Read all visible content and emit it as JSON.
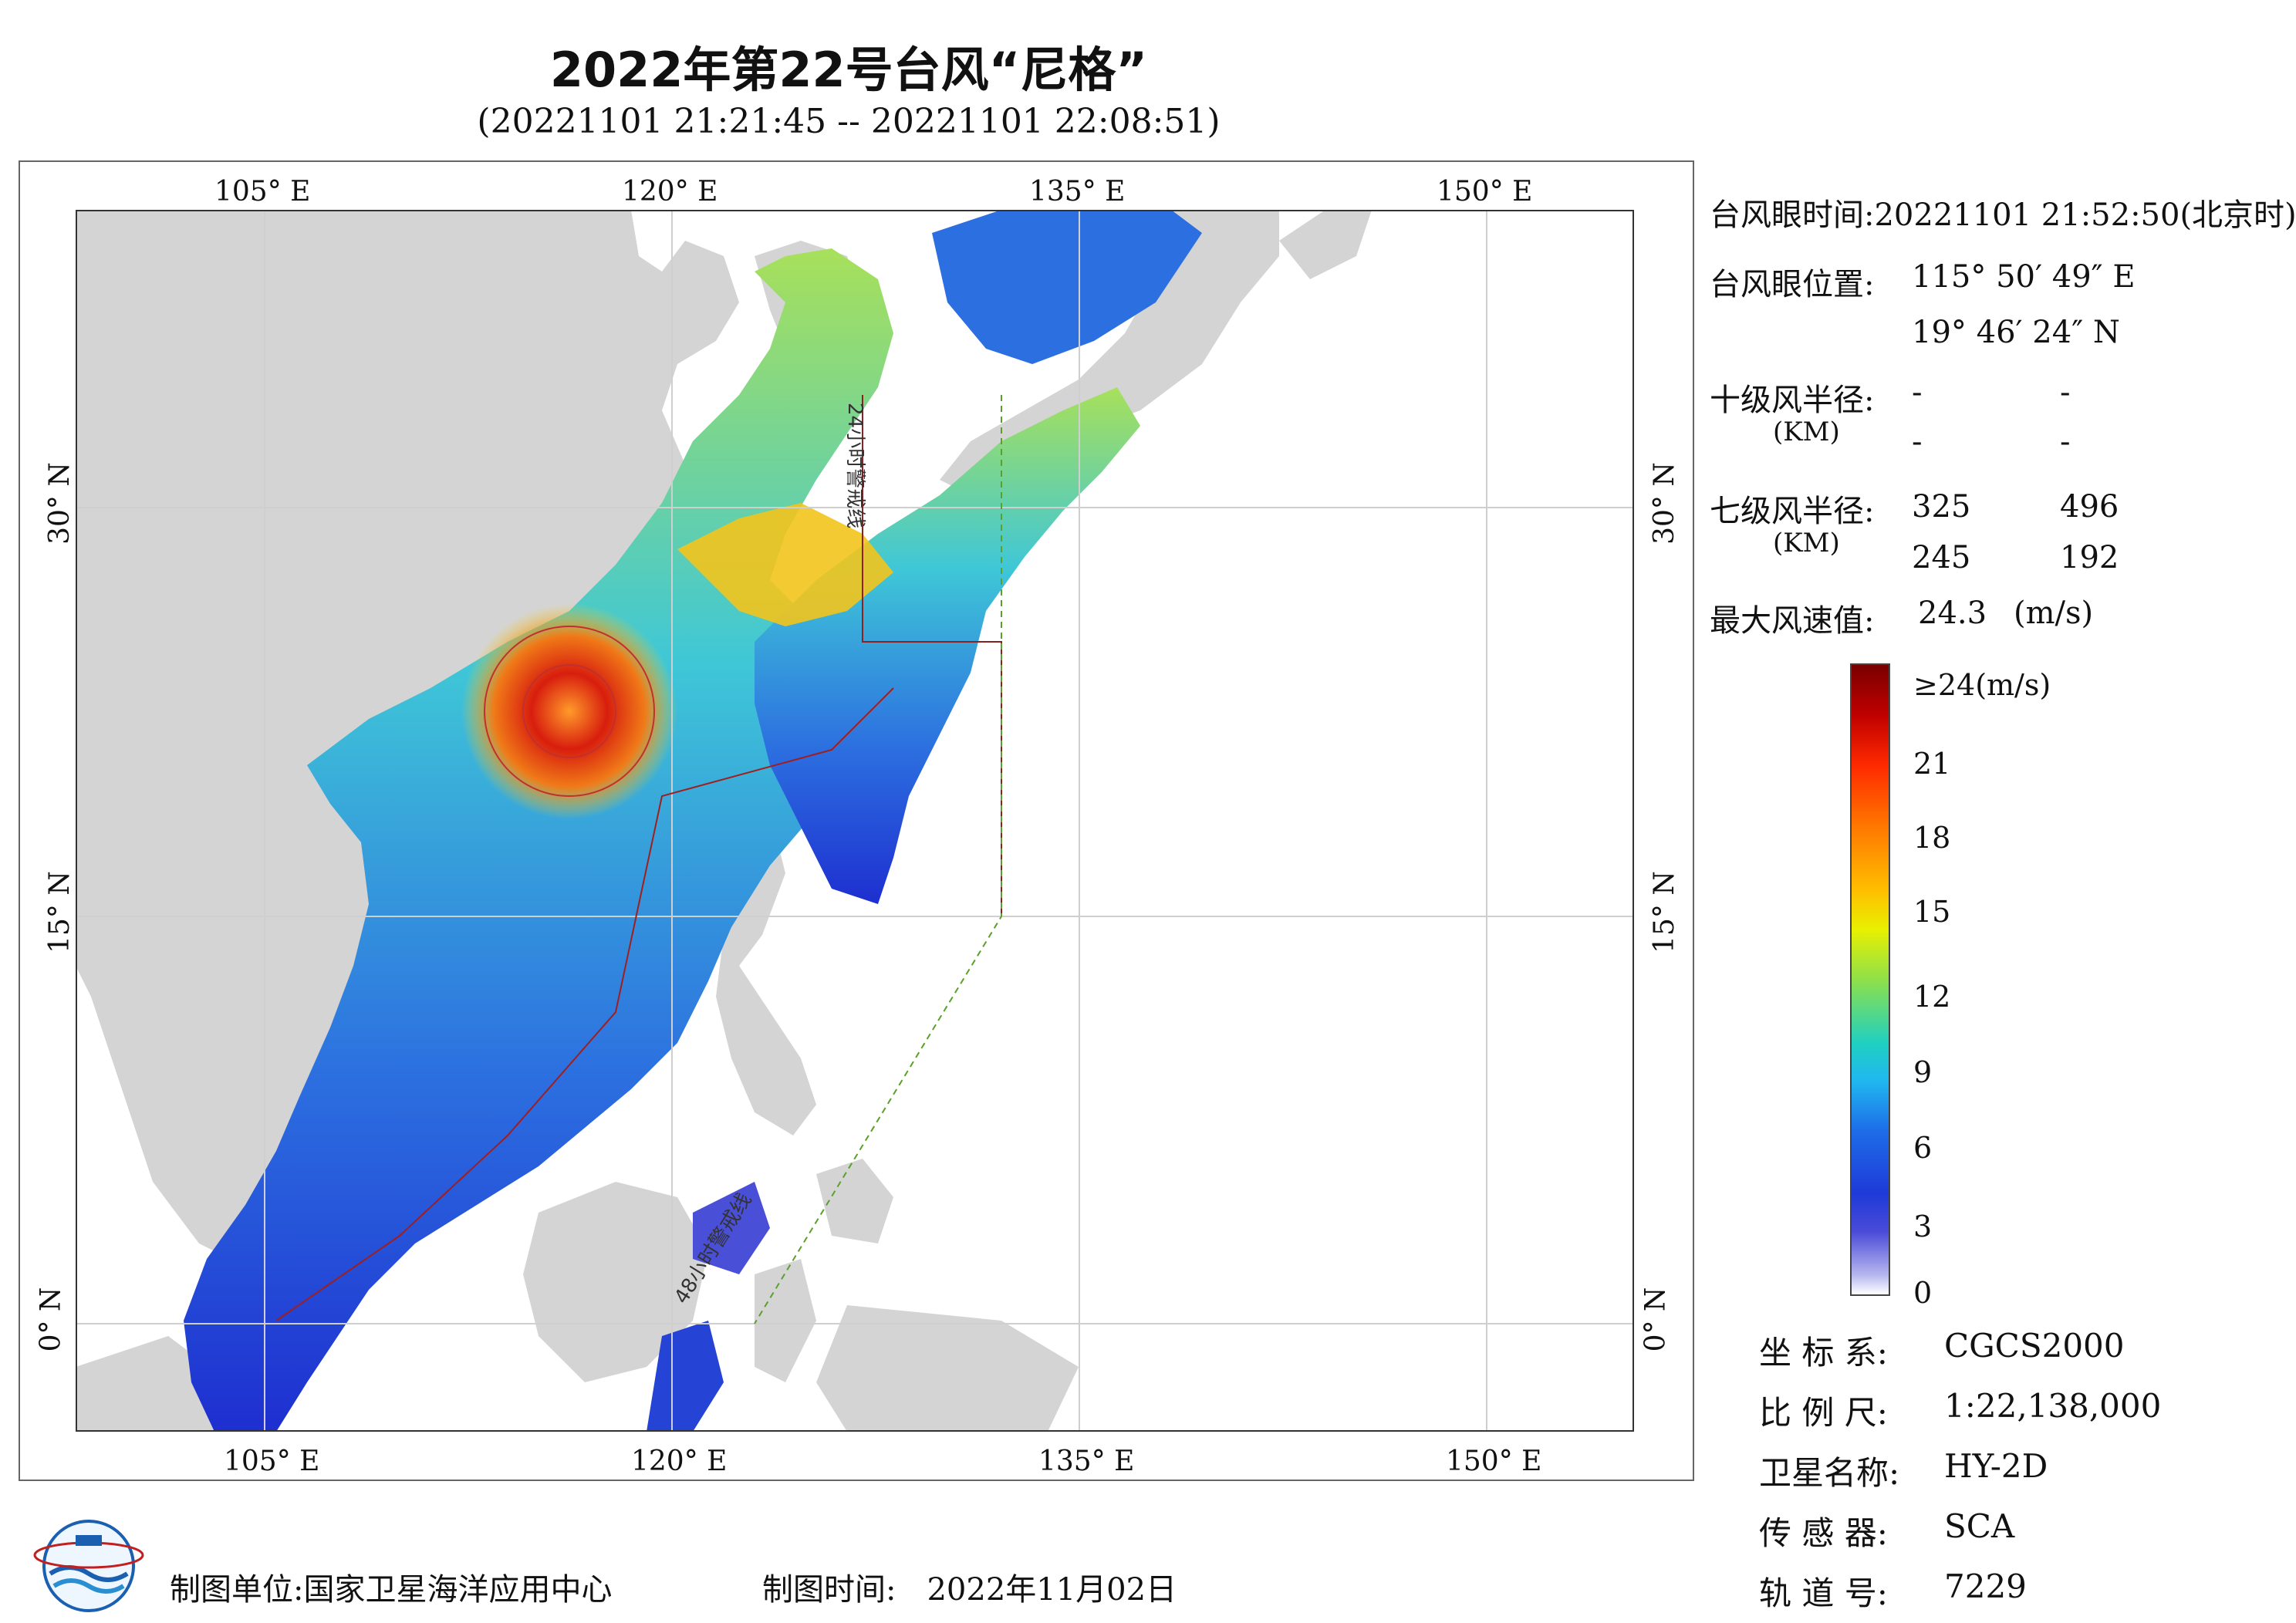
{
  "title": "2022年第22号台风“尼格”",
  "subtitle": "(20221101 21:21:45 -- 20221101 22:08:51)",
  "map": {
    "lon_top_labels": [
      "105° E",
      "120° E",
      "135° E",
      "150° E"
    ],
    "lon_bottom_labels": [
      "105° E",
      "120° E",
      "135° E",
      "150° E"
    ],
    "lat_left_labels": [
      "30° N",
      "15° N",
      "0° N"
    ],
    "lat_right_labels": [
      "30° N",
      "15° N",
      "0° N"
    ],
    "warning_24h_label": "24小时警戒线",
    "warning_48h_label": "48小时警戒线",
    "colors": {
      "land": "#d4d4d4",
      "sea": "#ffffff",
      "wind_high": "#8b0000",
      "wind_low": "#1530d8"
    }
  },
  "info": {
    "eye_time_label": "台风眼时间:",
    "eye_time_value": "20221101 21:52:50(北京时)",
    "eye_pos_label": "台风眼位置:",
    "eye_lon": "115° 50′ 49″ E",
    "eye_lat": "19° 46′ 24″ N",
    "r10_label": "十级风半径:",
    "r10_unit": "(KM)",
    "r10_values": [
      "-",
      "-",
      "-",
      "-"
    ],
    "r7_label": "七级风半径:",
    "r7_unit": "(KM)",
    "r7_values": [
      "325",
      "496",
      "245",
      "192"
    ],
    "max_wind_label": "最大风速值:",
    "max_wind_value": "24.3",
    "max_wind_unit": "(m/s)"
  },
  "colorbar": {
    "top_label": "≥24(m/s)",
    "ticks": [
      "21",
      "18",
      "15",
      "12",
      "9",
      "6",
      "3",
      "0"
    ]
  },
  "meta": {
    "crs_label": "坐 标 系:",
    "crs_value": "CGCS2000",
    "scale_label": "比 例 尺:",
    "scale_value": "1:22,138,000",
    "satellite_label": "卫星名称:",
    "satellite_value": "HY-2D",
    "sensor_label": "传 感 器:",
    "sensor_value": "SCA",
    "orbit_label": "轨 道 号:",
    "orbit_value": "7229"
  },
  "footer": {
    "maker_label": "制图单位:",
    "maker_value": "国家卫星海洋应用中心",
    "date_label": "制图时间:",
    "date_value": "2022年11月02日"
  }
}
